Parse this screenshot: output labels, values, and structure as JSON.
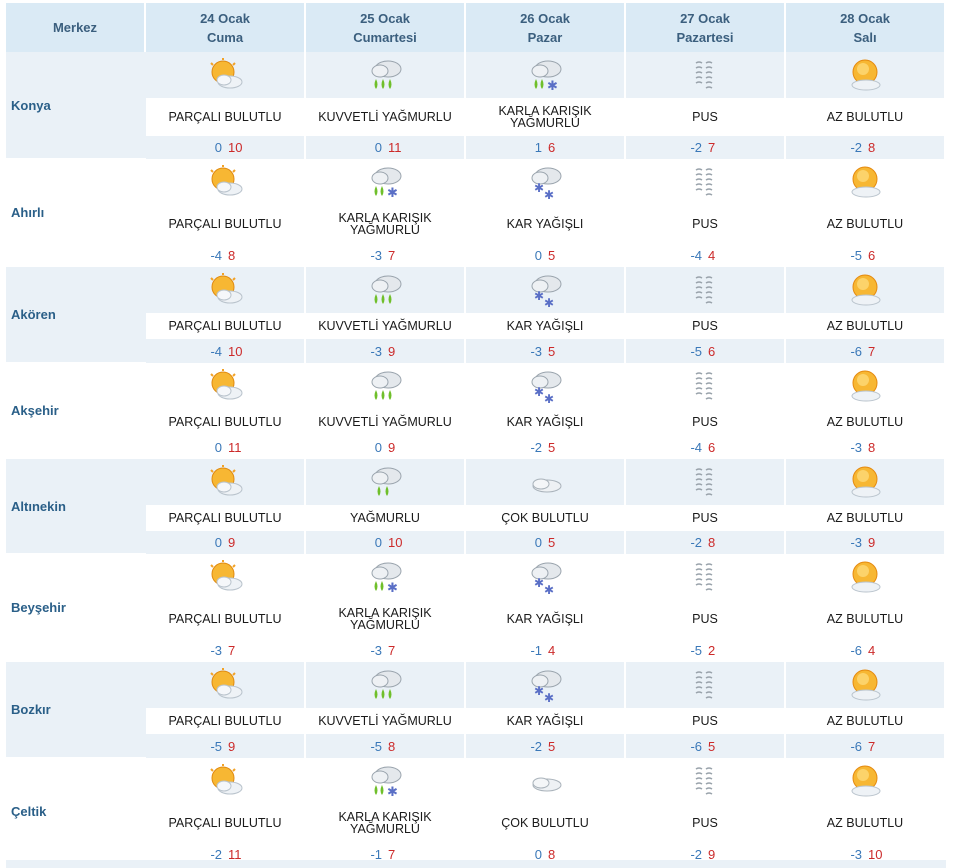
{
  "header": {
    "region_label": "Merkez",
    "days": [
      {
        "date": "24 Ocak",
        "weekday": "Cuma"
      },
      {
        "date": "25 Ocak",
        "weekday": "Cumartesi"
      },
      {
        "date": "26 Ocak",
        "weekday": "Pazar"
      },
      {
        "date": "27 Ocak",
        "weekday": "Pazartesi"
      },
      {
        "date": "28 Ocak",
        "weekday": "Salı"
      }
    ]
  },
  "rows": [
    {
      "city": "Konya",
      "days": [
        {
          "icon": "partly-cloudy-icon",
          "desc": "PARÇALI BULUTLU",
          "min": "0",
          "max": "10"
        },
        {
          "icon": "heavy-rain-icon",
          "desc": "KUVVETLİ YAĞMURLU",
          "min": "0",
          "max": "11"
        },
        {
          "icon": "sleet-icon",
          "desc": "KARLA KARIŞIK YAĞMURLU",
          "min": "1",
          "max": "6"
        },
        {
          "icon": "haze-icon",
          "desc": "PUS",
          "min": "-2",
          "max": "7"
        },
        {
          "icon": "mostly-sunny-icon",
          "desc": "AZ BULUTLU",
          "min": "-2",
          "max": "8"
        }
      ]
    },
    {
      "city": "Ahırlı",
      "days": [
        {
          "icon": "partly-cloudy-icon",
          "desc": "PARÇALI BULUTLU",
          "min": "-4",
          "max": "8"
        },
        {
          "icon": "sleet-icon",
          "desc": "KARLA KARIŞIK YAĞMURLU",
          "min": "-3",
          "max": "7"
        },
        {
          "icon": "snow-icon",
          "desc": "KAR YAĞIŞLI",
          "min": "0",
          "max": "5"
        },
        {
          "icon": "haze-icon",
          "desc": "PUS",
          "min": "-4",
          "max": "4"
        },
        {
          "icon": "mostly-sunny-icon",
          "desc": "AZ BULUTLU",
          "min": "-5",
          "max": "6"
        }
      ]
    },
    {
      "city": "Akören",
      "days": [
        {
          "icon": "partly-cloudy-icon",
          "desc": "PARÇALI BULUTLU",
          "min": "-4",
          "max": "10"
        },
        {
          "icon": "heavy-rain-icon",
          "desc": "KUVVETLİ YAĞMURLU",
          "min": "-3",
          "max": "9"
        },
        {
          "icon": "snow-icon",
          "desc": "KAR YAĞIŞLI",
          "min": "-3",
          "max": "5"
        },
        {
          "icon": "haze-icon",
          "desc": "PUS",
          "min": "-5",
          "max": "6"
        },
        {
          "icon": "mostly-sunny-icon",
          "desc": "AZ BULUTLU",
          "min": "-6",
          "max": "7"
        }
      ]
    },
    {
      "city": "Akşehir",
      "days": [
        {
          "icon": "partly-cloudy-icon",
          "desc": "PARÇALI BULUTLU",
          "min": "0",
          "max": "11"
        },
        {
          "icon": "heavy-rain-icon",
          "desc": "KUVVETLİ YAĞMURLU",
          "min": "0",
          "max": "9"
        },
        {
          "icon": "snow-icon",
          "desc": "KAR YAĞIŞLI",
          "min": "-2",
          "max": "5"
        },
        {
          "icon": "haze-icon",
          "desc": "PUS",
          "min": "-4",
          "max": "6"
        },
        {
          "icon": "mostly-sunny-icon",
          "desc": "AZ BULUTLU",
          "min": "-3",
          "max": "8"
        }
      ]
    },
    {
      "city": "Altınekin",
      "days": [
        {
          "icon": "partly-cloudy-icon",
          "desc": "PARÇALI BULUTLU",
          "min": "0",
          "max": "9"
        },
        {
          "icon": "rain-icon",
          "desc": "YAĞMURLU",
          "min": "0",
          "max": "10"
        },
        {
          "icon": "overcast-icon",
          "desc": "ÇOK BULUTLU",
          "min": "0",
          "max": "5"
        },
        {
          "icon": "haze-icon",
          "desc": "PUS",
          "min": "-2",
          "max": "8"
        },
        {
          "icon": "mostly-sunny-icon",
          "desc": "AZ BULUTLU",
          "min": "-3",
          "max": "9"
        }
      ]
    },
    {
      "city": "Beyşehir",
      "days": [
        {
          "icon": "partly-cloudy-icon",
          "desc": "PARÇALI BULUTLU",
          "min": "-3",
          "max": "7"
        },
        {
          "icon": "sleet-icon",
          "desc": "KARLA KARIŞIK YAĞMURLU",
          "min": "-3",
          "max": "7"
        },
        {
          "icon": "snow-icon",
          "desc": "KAR YAĞIŞLI",
          "min": "-1",
          "max": "4"
        },
        {
          "icon": "haze-icon",
          "desc": "PUS",
          "min": "-5",
          "max": "2"
        },
        {
          "icon": "mostly-sunny-icon",
          "desc": "AZ BULUTLU",
          "min": "-6",
          "max": "4"
        }
      ]
    },
    {
      "city": "Bozkır",
      "days": [
        {
          "icon": "partly-cloudy-icon",
          "desc": "PARÇALI BULUTLU",
          "min": "-5",
          "max": "9"
        },
        {
          "icon": "heavy-rain-icon",
          "desc": "KUVVETLİ YAĞMURLU",
          "min": "-5",
          "max": "8"
        },
        {
          "icon": "snow-icon",
          "desc": "KAR YAĞIŞLI",
          "min": "-2",
          "max": "5"
        },
        {
          "icon": "haze-icon",
          "desc": "PUS",
          "min": "-6",
          "max": "5"
        },
        {
          "icon": "mostly-sunny-icon",
          "desc": "AZ BULUTLU",
          "min": "-6",
          "max": "7"
        }
      ]
    },
    {
      "city": "Çeltik",
      "days": [
        {
          "icon": "partly-cloudy-icon",
          "desc": "PARÇALI BULUTLU",
          "min": "-2",
          "max": "11"
        },
        {
          "icon": "sleet-icon",
          "desc": "KARLA KARIŞIK YAĞMURLU",
          "min": "-1",
          "max": "7"
        },
        {
          "icon": "overcast-icon",
          "desc": "ÇOK BULUTLU",
          "min": "0",
          "max": "8"
        },
        {
          "icon": "haze-icon",
          "desc": "PUS",
          "min": "-2",
          "max": "9"
        },
        {
          "icon": "mostly-sunny-icon",
          "desc": "AZ BULUTLU",
          "min": "-3",
          "max": "10"
        }
      ]
    }
  ]
}
